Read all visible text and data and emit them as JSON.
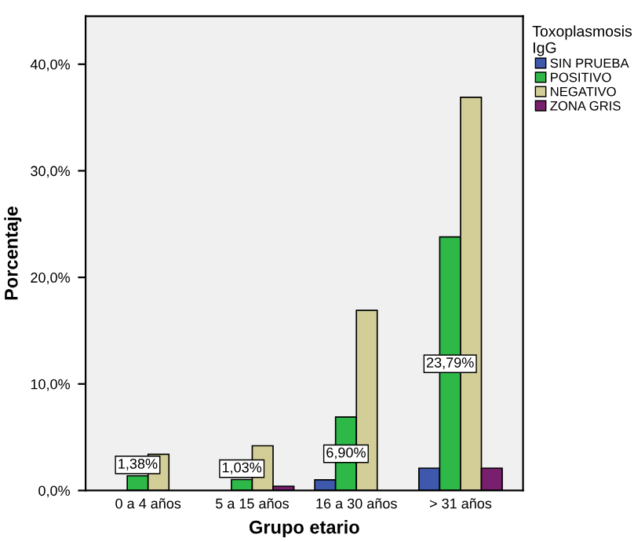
{
  "chart_data": {
    "type": "bar",
    "xlabel": "Grupo etario",
    "ylabel": "Porcentaje",
    "legend_title": "Toxoplasmosis\nIgG",
    "legend": "top right",
    "grid": false,
    "categories": [
      "0 a 4 años",
      "5 a 15 años",
      "16 a 30 años",
      "> 31 años"
    ],
    "ylim": [
      0,
      44.5
    ],
    "yticks": [
      {
        "value": 0,
        "label": "0,0%"
      },
      {
        "value": 10,
        "label": "10,0%"
      },
      {
        "value": 20,
        "label": "20,0%"
      },
      {
        "value": 30,
        "label": "30,0%"
      },
      {
        "value": 40,
        "label": "40,0%"
      }
    ],
    "series": [
      {
        "name": "SIN PRUEBA",
        "color": "#3e58ac",
        "values": [
          null,
          null,
          1.0,
          2.1
        ]
      },
      {
        "name": "POSITIVO",
        "color": "#2eb848",
        "values": [
          1.38,
          1.03,
          6.9,
          23.79
        ],
        "value_labels": [
          "1,38%",
          "1,03%",
          "6,90%",
          "23,79%"
        ]
      },
      {
        "name": "NEGATIVO",
        "color": "#d3ce97",
        "values": [
          3.4,
          4.2,
          16.9,
          36.9
        ]
      },
      {
        "name": "ZONA GRIS",
        "color": "#781f6e",
        "values": [
          null,
          0.4,
          null,
          2.1
        ]
      }
    ]
  }
}
